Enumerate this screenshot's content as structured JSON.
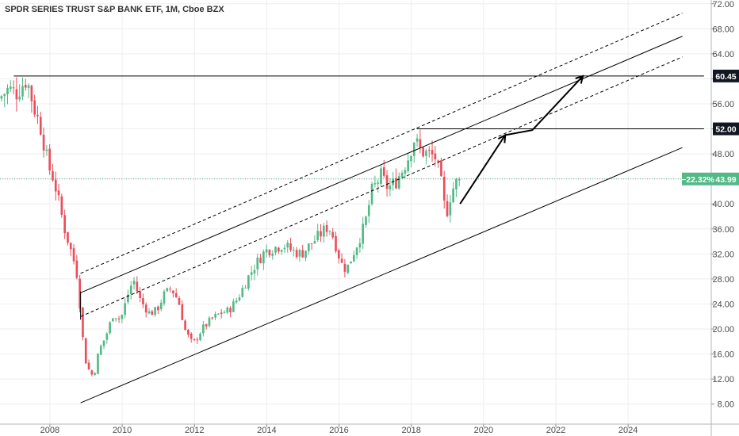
{
  "header": {
    "title": "SPDR SERIES TRUST S&P BANK ETF, 1M, Cboe BZX"
  },
  "colors": {
    "up": "#53b987",
    "down": "#eb4d5c",
    "grid": "#eeeeee",
    "axis_text": "#4a4a4a",
    "badge_dark": "#131722",
    "badge_green": "#53b987",
    "last_price_line": "#53b987"
  },
  "badges": {
    "level_high": "60.45",
    "level_mid": "52.00",
    "change": "−22.32%",
    "last_price": "43.99"
  },
  "chart_data": {
    "type": "candlestick",
    "title": "SPDR SERIES TRUST S&P BANK ETF, 1M, Cboe BZX",
    "interval": "1M",
    "exchange": "Cboe BZX",
    "y_ticks": [
      "8.00",
      "12.00",
      "16.00",
      "20.00",
      "24.00",
      "28.00",
      "32.00",
      "36.00",
      "40.00",
      "44.00",
      "48.00",
      "52.00",
      "56.00",
      "60.00",
      "64.00",
      "68.00",
      "72.00"
    ],
    "x_ticks": [
      "2008",
      "2010",
      "2012",
      "2014",
      "2016",
      "2018",
      "2020",
      "2022",
      "2024"
    ],
    "ylim": [
      4.8,
      72.6
    ],
    "xlim": [
      2006.62,
      2026.3
    ],
    "grid": true,
    "y_axis_position": "right",
    "last_price": 43.99,
    "change_percent": -22.32,
    "horizontal_levels": [
      60.45,
      52.0
    ],
    "anchor_prices": [
      [
        2006.62,
        56.8
      ],
      [
        2006.9,
        58.4
      ],
      [
        2007.1,
        57.7
      ],
      [
        2007.4,
        60.0
      ],
      [
        2007.6,
        55.5
      ],
      [
        2007.8,
        52.0
      ],
      [
        2008.0,
        46.0
      ],
      [
        2008.15,
        44.0
      ],
      [
        2008.3,
        40.0
      ],
      [
        2008.45,
        36.0
      ],
      [
        2008.55,
        34.0
      ],
      [
        2008.7,
        31.0
      ],
      [
        2008.8,
        28.5
      ],
      [
        2008.9,
        22.0
      ],
      [
        2009.0,
        15.5
      ],
      [
        2009.15,
        13.0
      ],
      [
        2009.25,
        12.5
      ],
      [
        2009.4,
        16.5
      ],
      [
        2009.6,
        19.0
      ],
      [
        2009.8,
        22.5
      ],
      [
        2010.0,
        21.5
      ],
      [
        2010.2,
        25.5
      ],
      [
        2010.35,
        28.0
      ],
      [
        2010.55,
        24.5
      ],
      [
        2010.8,
        22.5
      ],
      [
        2011.0,
        23.0
      ],
      [
        2011.2,
        25.5
      ],
      [
        2011.4,
        26.5
      ],
      [
        2011.6,
        24.5
      ],
      [
        2011.8,
        19.5
      ],
      [
        2012.0,
        17.5
      ],
      [
        2012.25,
        20.0
      ],
      [
        2012.5,
        21.5
      ],
      [
        2012.75,
        22.5
      ],
      [
        2013.0,
        23.0
      ],
      [
        2013.25,
        25.0
      ],
      [
        2013.5,
        28.0
      ],
      [
        2013.75,
        30.5
      ],
      [
        2014.0,
        32.5
      ],
      [
        2014.25,
        33.0
      ],
      [
        2014.5,
        33.5
      ],
      [
        2014.75,
        32.5
      ],
      [
        2015.0,
        32.0
      ],
      [
        2015.25,
        33.5
      ],
      [
        2015.5,
        35.0
      ],
      [
        2015.75,
        36.5
      ],
      [
        2015.9,
        34.5
      ],
      [
        2016.1,
        30.5
      ],
      [
        2016.25,
        29.5
      ],
      [
        2016.5,
        33.0
      ],
      [
        2016.75,
        36.5
      ],
      [
        2016.95,
        42.0
      ],
      [
        2017.2,
        44.5
      ],
      [
        2017.4,
        42.5
      ],
      [
        2017.6,
        43.5
      ],
      [
        2017.8,
        45.5
      ],
      [
        2018.0,
        48.0
      ],
      [
        2018.1,
        50.5
      ],
      [
        2018.3,
        48.5
      ],
      [
        2018.5,
        48.0
      ],
      [
        2018.7,
        47.5
      ],
      [
        2018.85,
        44.0
      ],
      [
        2019.0,
        38.0
      ],
      [
        2019.15,
        42.0
      ],
      [
        2019.3,
        43.5
      ],
      [
        2019.35,
        43.99
      ]
    ],
    "channel_lines": [
      {
        "style": "solid",
        "points": [
          [
            2007.0,
            60.45
          ],
          [
            2026.1,
            60.45
          ]
        ]
      },
      {
        "style": "solid",
        "points": [
          [
            2018.15,
            52.0
          ],
          [
            2026.1,
            52.0
          ]
        ]
      },
      {
        "style": "solid",
        "points": [
          [
            2008.85,
            25.8
          ],
          [
            2025.5,
            66.8
          ]
        ]
      },
      {
        "style": "solid",
        "points": [
          [
            2008.85,
            8.2
          ],
          [
            2025.5,
            49.0
          ]
        ]
      },
      {
        "style": "dashed",
        "points": [
          [
            2008.85,
            28.9
          ],
          [
            2025.5,
            70.5
          ]
        ]
      },
      {
        "style": "dashed",
        "points": [
          [
            2008.85,
            22.0
          ],
          [
            2025.5,
            63.5
          ]
        ]
      },
      {
        "style": "solid",
        "points": [
          [
            2008.85,
            21.5
          ],
          [
            2008.85,
            26.0
          ]
        ]
      }
    ],
    "arrows": [
      {
        "points": [
          [
            2019.35,
            40.0
          ],
          [
            2020.6,
            51.0
          ],
          [
            2021.35,
            51.8
          ],
          [
            2022.75,
            60.45
          ]
        ]
      }
    ]
  }
}
